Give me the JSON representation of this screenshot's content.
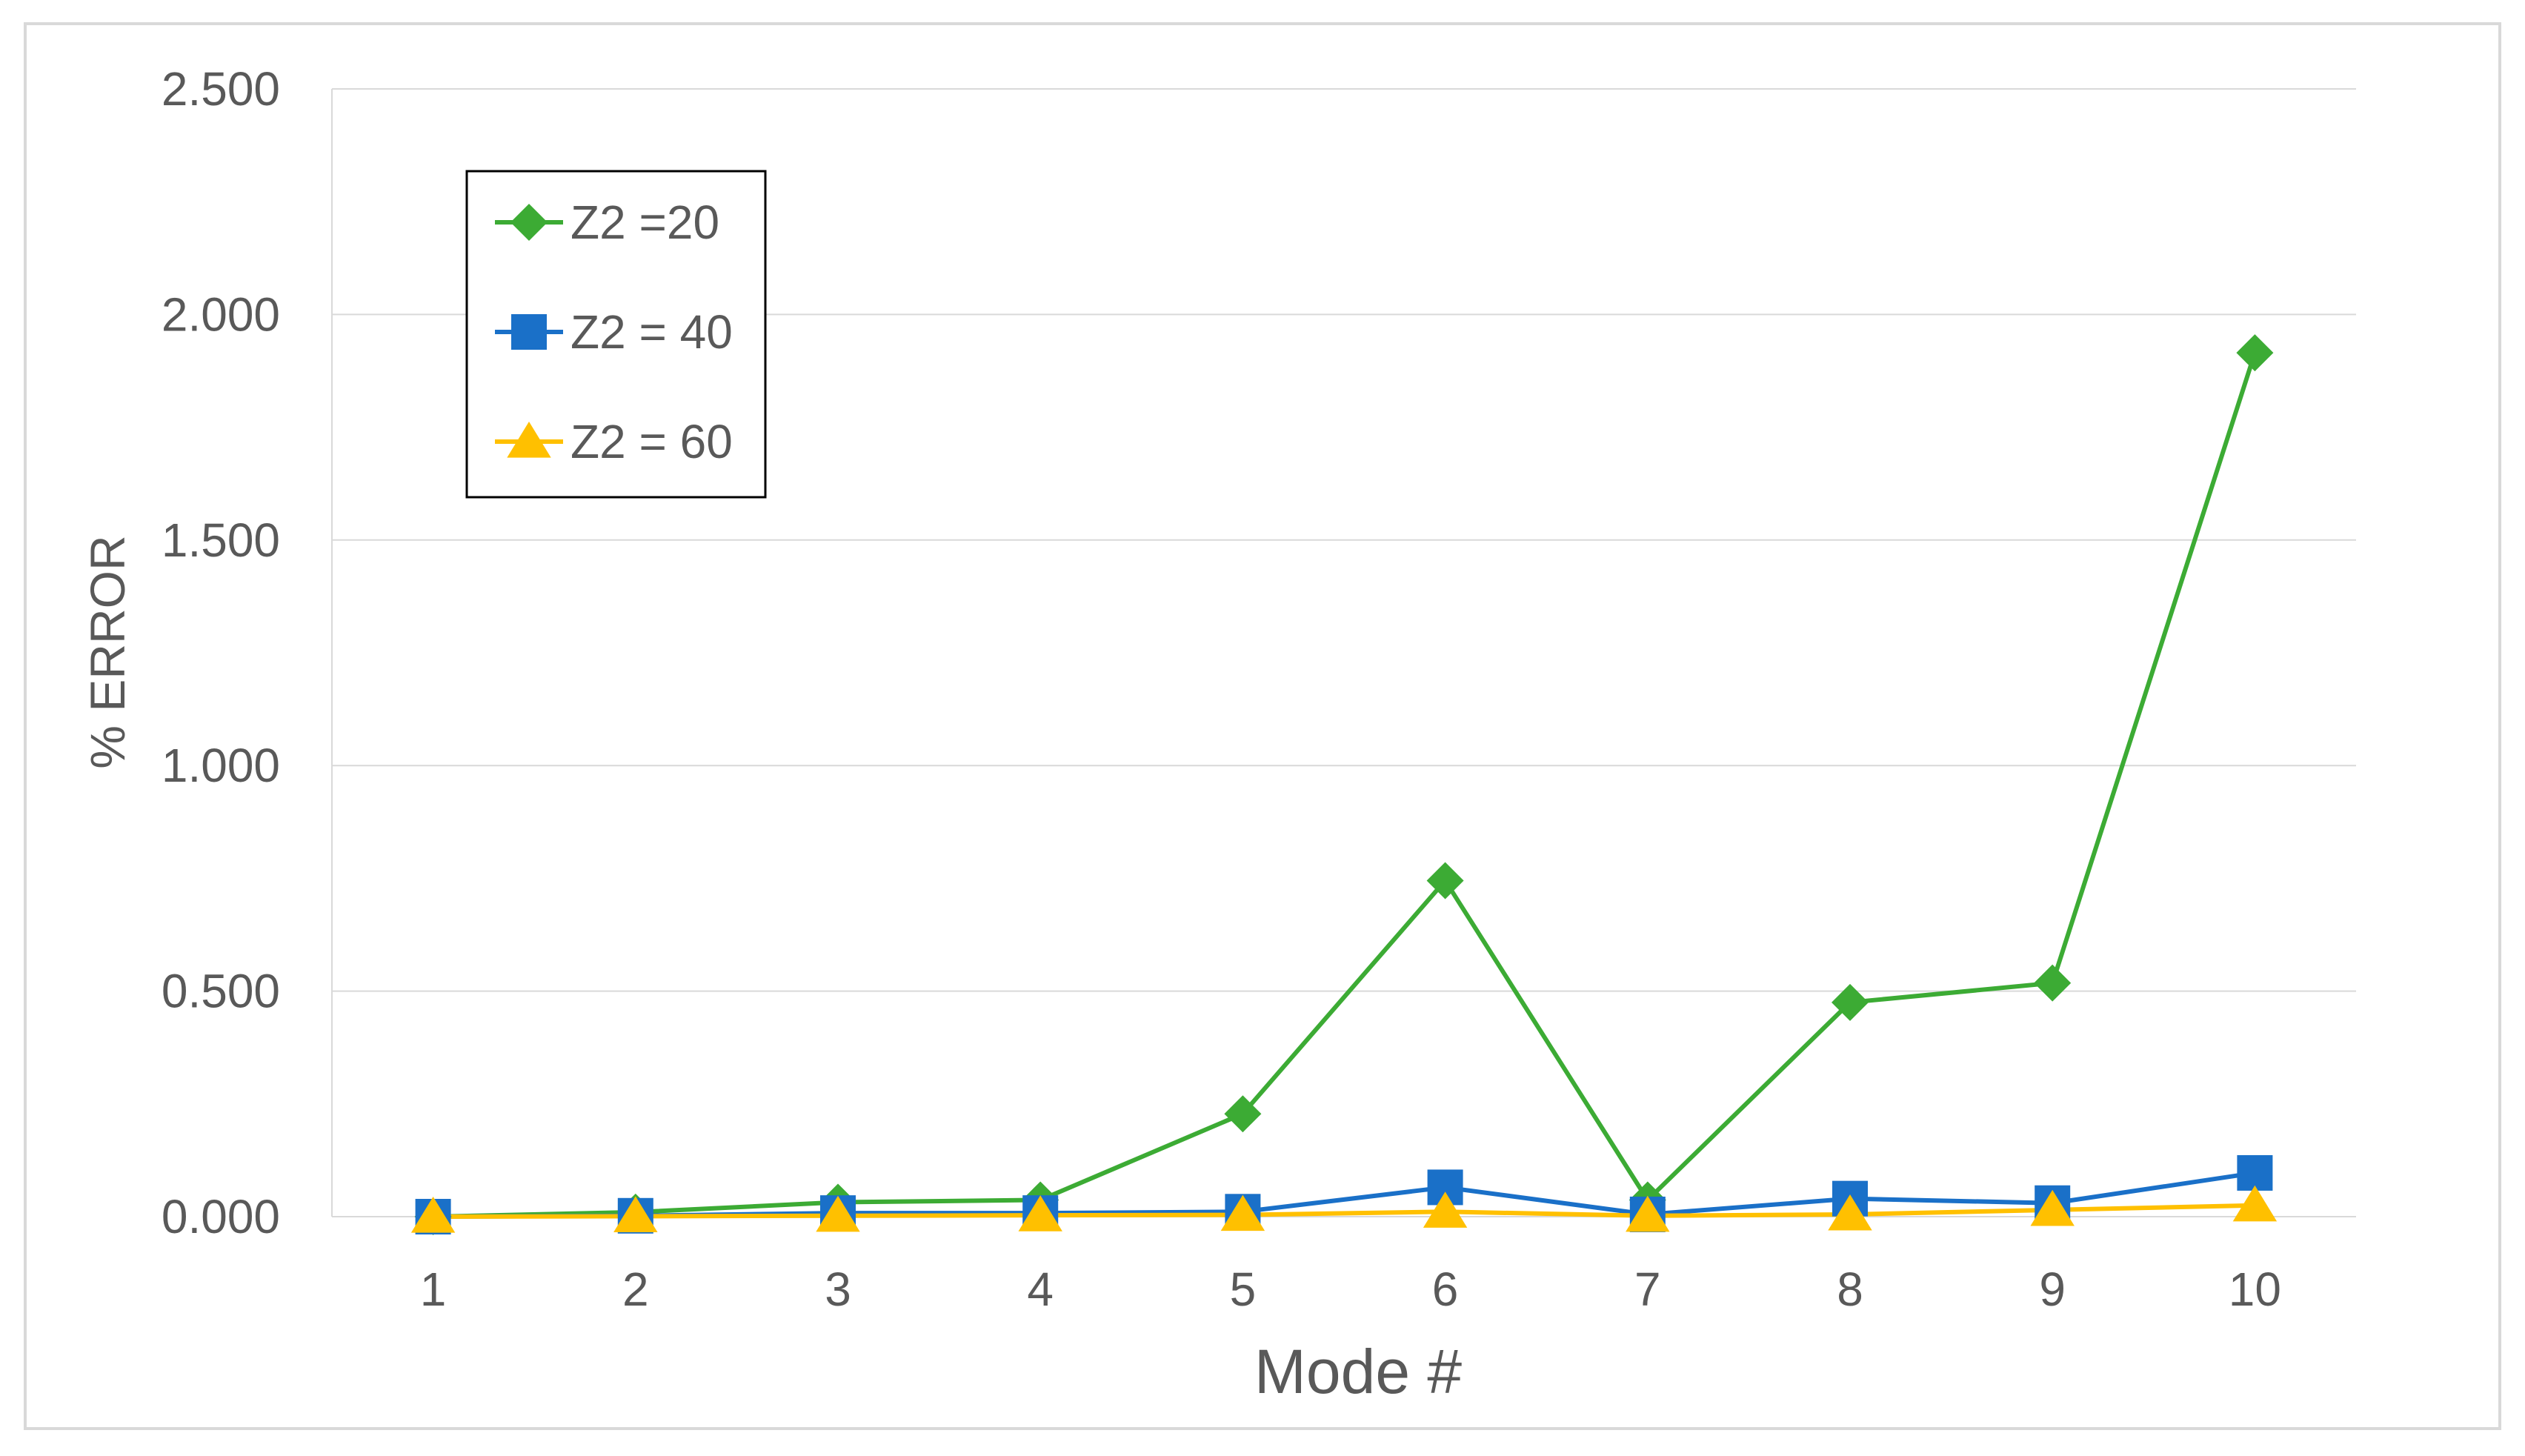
{
  "chart_data": {
    "type": "line",
    "title": "",
    "xlabel": "Mode #",
    "ylabel": "% ERROR",
    "categories": [
      "1",
      "2",
      "3",
      "4",
      "5",
      "6",
      "7",
      "8",
      "9",
      "10"
    ],
    "ylim": [
      0,
      2.5
    ],
    "yticks": [
      "0.000",
      "0.500",
      "1.000",
      "1.500",
      "2.000",
      "2.500"
    ],
    "ytick_values": [
      0,
      0.5,
      1.0,
      1.5,
      2.0,
      2.5
    ],
    "grid": "horizontal",
    "legend_position": "top-left",
    "series": [
      {
        "name": "Z2 =20",
        "color": "#3cab34",
        "marker": "diamond",
        "values": [
          0.0,
          0.01,
          0.032,
          0.037,
          0.228,
          0.745,
          0.037,
          0.475,
          0.518,
          1.915
        ]
      },
      {
        "name": "Z2 = 40",
        "color": "#1a70c8",
        "marker": "square",
        "values": [
          0.0,
          0.002,
          0.008,
          0.008,
          0.011,
          0.065,
          0.005,
          0.04,
          0.03,
          0.097
        ]
      },
      {
        "name": "Z2 = 60",
        "color": "#ffc000",
        "marker": "triangle",
        "values": [
          0.0,
          0.001,
          0.002,
          0.003,
          0.004,
          0.011,
          0.002,
          0.005,
          0.015,
          0.025
        ]
      }
    ]
  }
}
